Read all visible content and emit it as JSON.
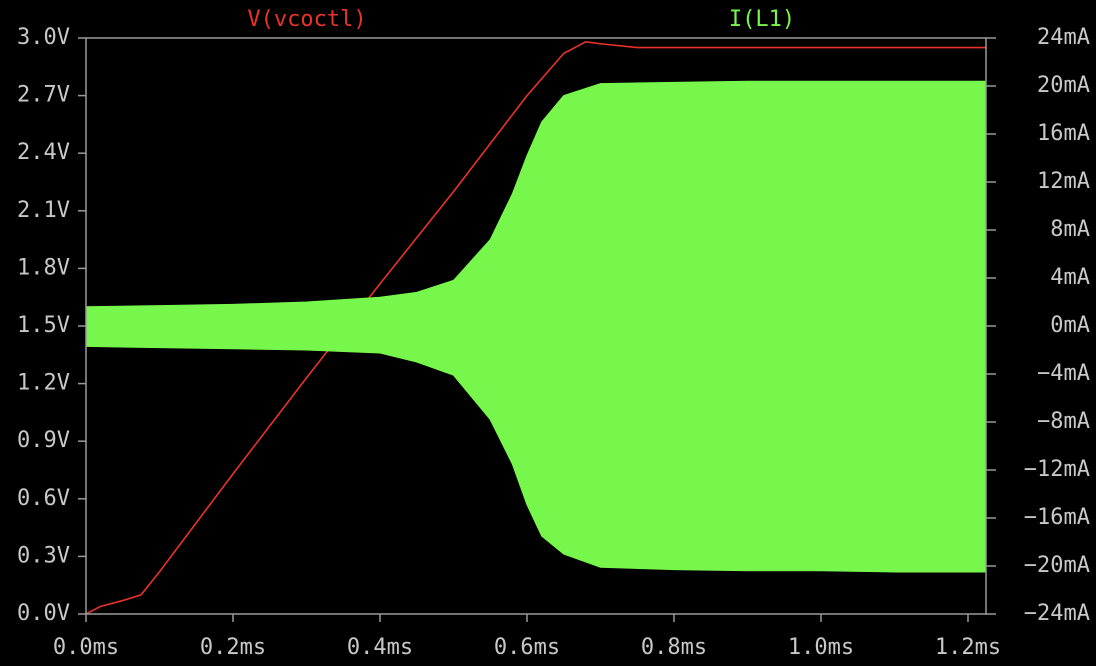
{
  "chart_data": {
    "type": "line",
    "background": "#000000",
    "series": [
      {
        "name": "V(vcoctl)",
        "color": "#e8322a",
        "x": [
          0,
          0.02,
          0.05,
          0.075,
          0.1,
          0.2,
          0.3,
          0.4,
          0.5,
          0.6,
          0.65,
          0.68,
          0.7,
          0.75,
          0.8,
          0.9,
          1.0,
          1.1,
          1.2,
          1.2245
        ],
        "values": [
          0,
          0.04,
          0.07,
          0.1,
          0.22,
          0.73,
          1.23,
          1.72,
          2.2,
          2.7,
          2.92,
          2.98,
          2.97,
          2.95,
          2.95,
          2.95,
          2.95,
          2.95,
          2.95,
          2.95
        ]
      },
      {
        "name": "I(L1)",
        "color": "#77f74c",
        "axis": "y2",
        "x": [
          0,
          0.1,
          0.2,
          0.3,
          0.4,
          0.45,
          0.5,
          0.55,
          0.58,
          0.6,
          0.62,
          0.65,
          0.7,
          0.8,
          0.9,
          1.0,
          1.1,
          1.2245
        ],
        "upper": [
          1.6,
          1.7,
          1.8,
          2.0,
          2.4,
          2.8,
          3.8,
          7.2,
          11,
          14.2,
          17,
          19.2,
          20.2,
          20.3,
          20.4,
          20.4,
          20.4,
          20.4
        ],
        "lower": [
          -1.7,
          -1.8,
          -1.9,
          -2.0,
          -2.25,
          -3,
          -4.1,
          -7.8,
          -11.5,
          -14.9,
          -17.5,
          -19,
          -20.1,
          -20.3,
          -20.4,
          -20.4,
          -20.5,
          -20.5
        ]
      }
    ],
    "xlim": [
      0,
      1.2245
    ],
    "xticks": [
      {
        "value": 0,
        "label": "0.0ms"
      },
      {
        "value": 0.2,
        "label": "0.2ms"
      },
      {
        "value": 0.4,
        "label": "0.4ms"
      },
      {
        "value": 0.6,
        "label": "0.6ms"
      },
      {
        "value": 0.8,
        "label": "0.8ms"
      },
      {
        "value": 1.0,
        "label": "1.0ms"
      },
      {
        "value": 1.2,
        "label": "1.2ms"
      }
    ],
    "ylim": [
      0,
      3
    ],
    "yticks": [
      {
        "value": 0,
        "label": "0.0V"
      },
      {
        "value": 0.3,
        "label": "0.3V"
      },
      {
        "value": 0.6,
        "label": "0.6V"
      },
      {
        "value": 0.9,
        "label": "0.9V"
      },
      {
        "value": 1.2,
        "label": "1.2V"
      },
      {
        "value": 1.5,
        "label": "1.5V"
      },
      {
        "value": 1.8,
        "label": "1.8V"
      },
      {
        "value": 2.1,
        "label": "2.1V"
      },
      {
        "value": 2.4,
        "label": "2.4V"
      },
      {
        "value": 2.7,
        "label": "2.7V"
      },
      {
        "value": 3.0,
        "label": "3.0V"
      }
    ],
    "y2lim": [
      -24,
      24
    ],
    "y2ticks": [
      {
        "value": -24,
        "label": "−24mA"
      },
      {
        "value": -20,
        "label": "−20mA"
      },
      {
        "value": -16,
        "label": "−16mA"
      },
      {
        "value": -12,
        "label": "−12mA"
      },
      {
        "value": -8,
        "label": "−8mA"
      },
      {
        "value": -4,
        "label": "−4mA"
      },
      {
        "value": 0,
        "label": "0mA"
      },
      {
        "value": 4,
        "label": "4mA"
      },
      {
        "value": 8,
        "label": "8mA"
      },
      {
        "value": 12,
        "label": "12mA"
      },
      {
        "value": 16,
        "label": "16mA"
      },
      {
        "value": 20,
        "label": "20mA"
      },
      {
        "value": 24,
        "label": "24mA"
      }
    ]
  }
}
